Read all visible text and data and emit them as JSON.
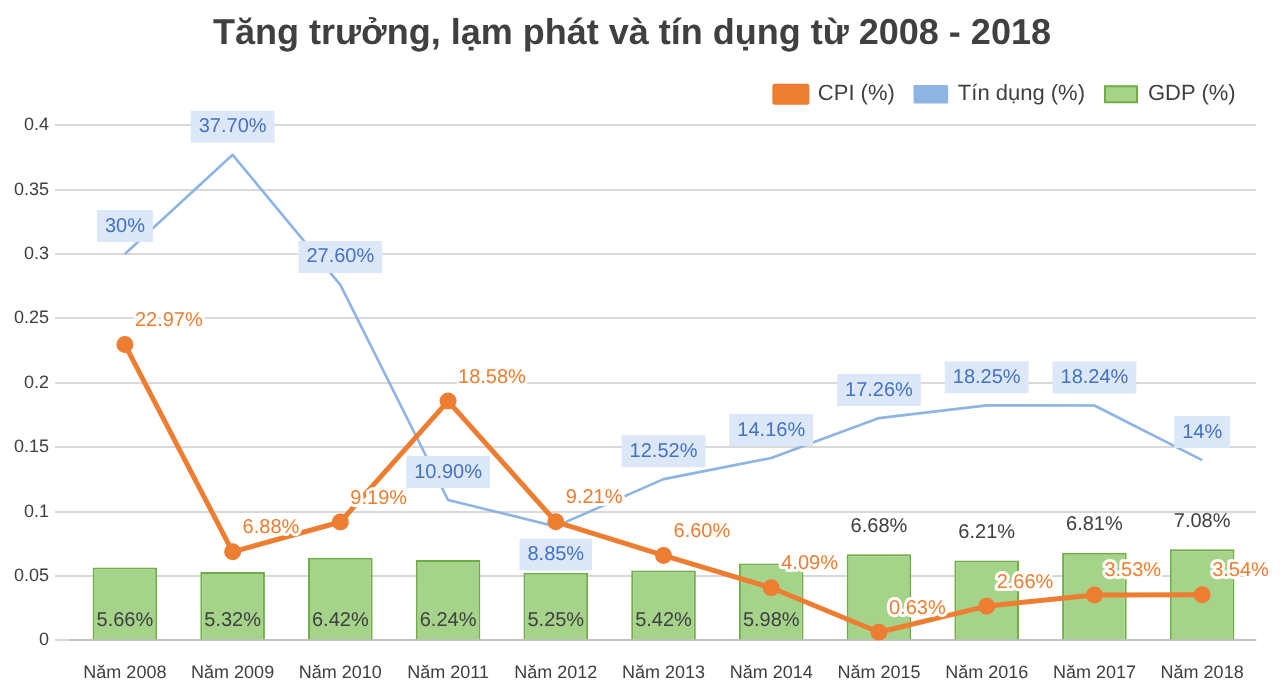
{
  "chart_data": {
    "type": "bar",
    "title": "Tăng trưởng, lạm phát và tín dụng từ 2008 - 2018",
    "categories": [
      "Năm 2008",
      "Năm 2009",
      "Năm 2010",
      "Năm 2011",
      "Năm 2012",
      "Năm 2013",
      "Năm 2014",
      "Năm 2015",
      "Năm 2016",
      "Năm 2017",
      "Năm 2018"
    ],
    "series": [
      {
        "name": "GDP (%)",
        "color": "#a5d38a",
        "values": [
          0.0566,
          0.0532,
          0.0642,
          0.0624,
          0.0525,
          0.0542,
          0.0598,
          0.0668,
          0.0621,
          0.0681,
          0.0708
        ],
        "value_labels": [
          "5.66%",
          "5.32%",
          "6.42%",
          "6.24%",
          "5.25%",
          "5.42%",
          "5.98%",
          "6.68%",
          "6.21%",
          "6.81%",
          "7.08%"
        ]
      },
      {
        "name": "CPI (%)",
        "type": "line",
        "color": "#ed7d31",
        "marker": "circle",
        "values": [
          0.2297,
          0.0688,
          0.0919,
          0.1858,
          0.0921,
          0.066,
          0.0409,
          0.0063,
          0.0266,
          0.0353,
          0.0354
        ],
        "value_labels": [
          "22.97%",
          "6.88%",
          "9.19%",
          "18.58%",
          "9.21%",
          "6.60%",
          "4.09%",
          "0.63%",
          "2.66%",
          "3.53%",
          "3.54%"
        ]
      },
      {
        "name": "Tín dụng (%)",
        "type": "line",
        "color": "#8db4e2",
        "marker": "none",
        "values": [
          0.3,
          0.377,
          0.276,
          0.109,
          0.0885,
          0.1252,
          0.1416,
          0.1726,
          0.1825,
          0.1824,
          0.14
        ],
        "value_labels": [
          "30%",
          "37.70%",
          "27.60%",
          "10.90%",
          "8.85%",
          "12.52%",
          "14.16%",
          "17.26%",
          "18.25%",
          "18.24%",
          "14%"
        ]
      }
    ],
    "ylim": [
      0,
      0.4
    ],
    "yticks": [
      0,
      0.05,
      0.1,
      0.15,
      0.2,
      0.25,
      0.3,
      0.35,
      0.4
    ],
    "grid": "y",
    "legend": "top"
  }
}
